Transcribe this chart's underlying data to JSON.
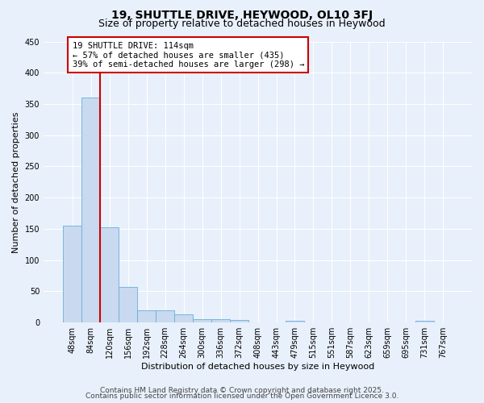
{
  "title": "19, SHUTTLE DRIVE, HEYWOOD, OL10 3FJ",
  "subtitle": "Size of property relative to detached houses in Heywood",
  "xlabel": "Distribution of detached houses by size in Heywood",
  "ylabel": "Number of detached properties",
  "bar_color": "#c8d9f0",
  "bar_edge_color": "#6baed6",
  "background_color": "#e8f0fb",
  "grid_color": "#ffffff",
  "categories": [
    "48sqm",
    "84sqm",
    "120sqm",
    "156sqm",
    "192sqm",
    "228sqm",
    "264sqm",
    "300sqm",
    "336sqm",
    "372sqm",
    "408sqm",
    "443sqm",
    "479sqm",
    "515sqm",
    "551sqm",
    "587sqm",
    "623sqm",
    "659sqm",
    "695sqm",
    "731sqm",
    "767sqm"
  ],
  "values": [
    155,
    360,
    153,
    57,
    20,
    20,
    13,
    6,
    6,
    4,
    0,
    0,
    3,
    0,
    0,
    0,
    0,
    0,
    0,
    3,
    0
  ],
  "ylim": [
    0,
    450
  ],
  "yticks": [
    0,
    50,
    100,
    150,
    200,
    250,
    300,
    350,
    400,
    450
  ],
  "red_line_x": 1.5,
  "property_label": "19 SHUTTLE DRIVE: 114sqm",
  "annotation_line1": "← 57% of detached houses are smaller (435)",
  "annotation_line2": "39% of semi-detached houses are larger (298) →",
  "annotation_box_color": "#ffffff",
  "annotation_box_edge": "#cc0000",
  "red_line_color": "#cc0000",
  "footer1": "Contains HM Land Registry data © Crown copyright and database right 2025.",
  "footer2": "Contains public sector information licensed under the Open Government Licence 3.0.",
  "title_fontsize": 10,
  "subtitle_fontsize": 9,
  "xlabel_fontsize": 8,
  "ylabel_fontsize": 8,
  "tick_fontsize": 7,
  "annotation_fontsize": 7.5,
  "footer_fontsize": 6.5
}
